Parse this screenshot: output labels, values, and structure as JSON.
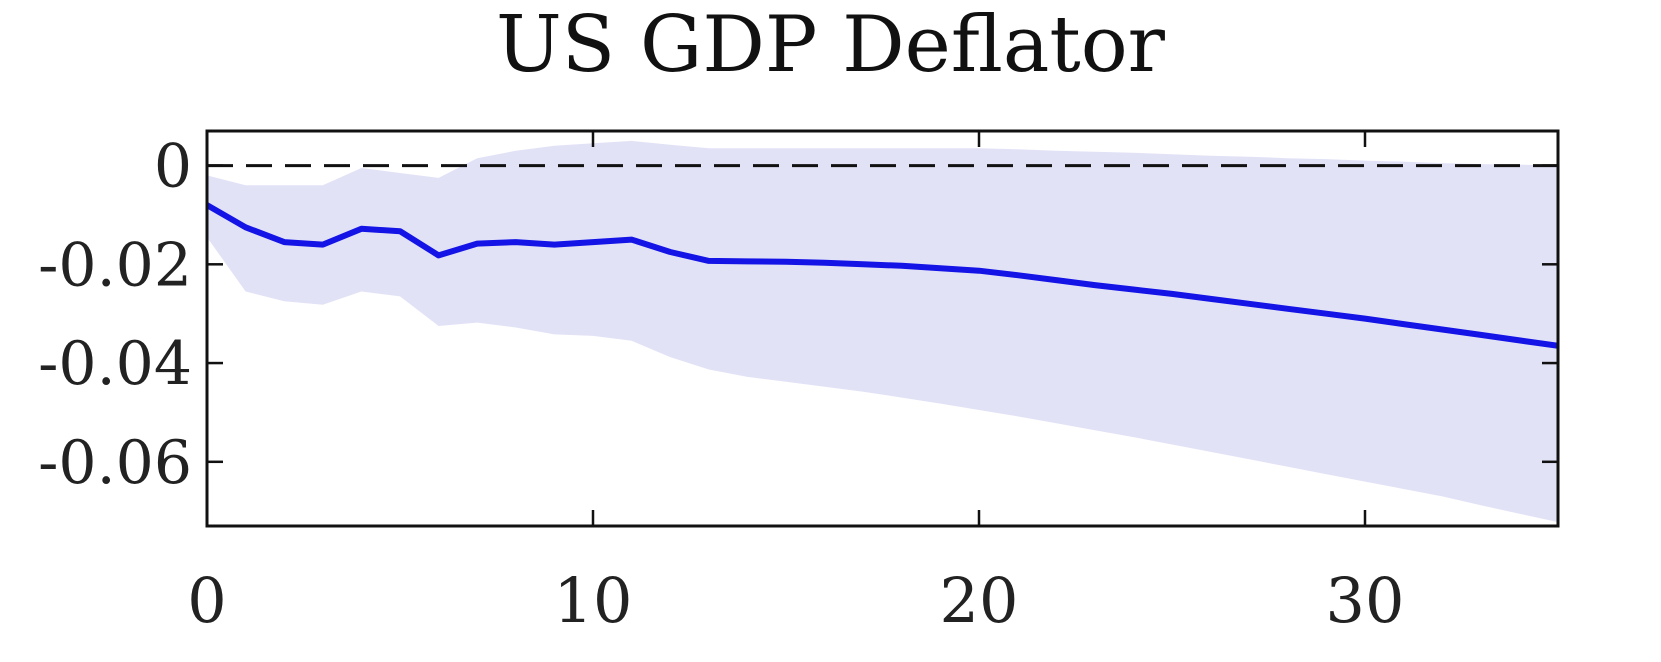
{
  "chart_data": {
    "type": "line",
    "title": "US GDP Deflator",
    "xlabel": "",
    "ylabel": "",
    "xlim": [
      0,
      35
    ],
    "ylim": [
      -0.073,
      0.007
    ],
    "xticks": [
      0,
      10,
      20,
      30
    ],
    "xtick_labels": [
      "0",
      "10",
      "20",
      "30"
    ],
    "yticks": [
      0,
      -0.02,
      -0.04,
      -0.06
    ],
    "ytick_labels": [
      "0",
      "-0.02",
      "-0.04",
      "-0.06"
    ],
    "grid": false,
    "reference_line": {
      "y": 0,
      "style": "dashed"
    },
    "series": [
      {
        "x": [
          0,
          1,
          2,
          3,
          4,
          5,
          6,
          7,
          8,
          9,
          10,
          11,
          12,
          13,
          14,
          15,
          16,
          17,
          18,
          19,
          20,
          21,
          22,
          23,
          24,
          25,
          26,
          27,
          28,
          29,
          30,
          31,
          32,
          33,
          34,
          35
        ],
        "values": [
          -0.008,
          -0.0125,
          -0.0155,
          -0.016,
          -0.0128,
          -0.0133,
          -0.0182,
          -0.0158,
          -0.0155,
          -0.016,
          -0.0155,
          -0.015,
          -0.0175,
          -0.0193,
          -0.0194,
          -0.0195,
          -0.0197,
          -0.02,
          -0.0203,
          -0.0208,
          -0.0213,
          -0.0222,
          -0.0232,
          -0.0242,
          -0.0251,
          -0.026,
          -0.027,
          -0.028,
          -0.029,
          -0.03,
          -0.031,
          -0.0321,
          -0.0332,
          -0.0343,
          -0.0354,
          -0.0365
        ],
        "color": "#1414e6"
      }
    ],
    "band": {
      "x": [
        0,
        1,
        2,
        3,
        4,
        5,
        6,
        7,
        8,
        9,
        10,
        11,
        12,
        13,
        14,
        15,
        16,
        17,
        18,
        19,
        20,
        21,
        22,
        23,
        24,
        25,
        26,
        27,
        28,
        29,
        30,
        31,
        32,
        33,
        34,
        35
      ],
      "upper": [
        -0.002,
        -0.004,
        -0.004,
        -0.004,
        -0.0005,
        -0.0015,
        -0.0025,
        0.0015,
        0.003,
        0.004,
        0.0045,
        0.005,
        0.0042,
        0.0035,
        0.0035,
        0.0035,
        0.0035,
        0.0035,
        0.0035,
        0.0035,
        0.0035,
        0.0033,
        0.003,
        0.0028,
        0.0026,
        0.0023,
        0.002,
        0.0018,
        0.0015,
        0.0013,
        0.001,
        0.0008,
        0.0005,
        0.0003,
        0.0002,
        0.0
      ],
      "lower": [
        -0.0145,
        -0.0255,
        -0.0275,
        -0.0282,
        -0.0255,
        -0.0265,
        -0.0325,
        -0.0318,
        -0.0328,
        -0.0342,
        -0.0345,
        -0.0355,
        -0.0388,
        -0.0413,
        -0.0428,
        -0.0438,
        -0.0448,
        -0.0458,
        -0.047,
        -0.0482,
        -0.0495,
        -0.0508,
        -0.0522,
        -0.0536,
        -0.055,
        -0.0565,
        -0.058,
        -0.0595,
        -0.061,
        -0.0625,
        -0.064,
        -0.0655,
        -0.067,
        -0.0688,
        -0.0705,
        -0.0722
      ],
      "color": "#e2e2f7"
    }
  }
}
